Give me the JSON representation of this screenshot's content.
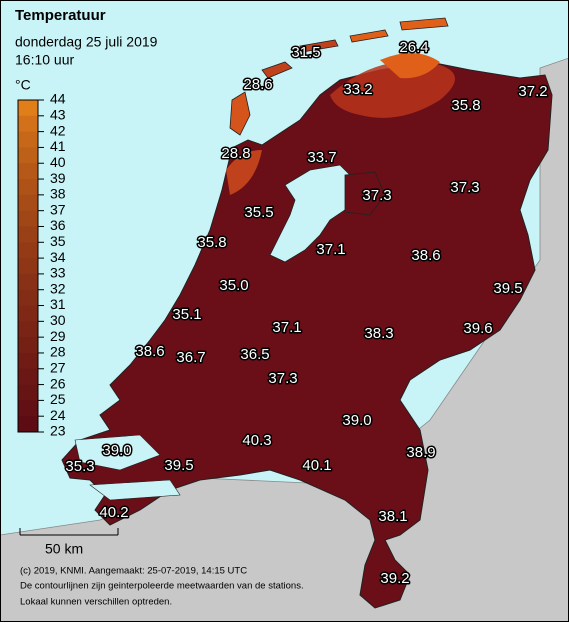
{
  "header": {
    "title": "Temperatuur",
    "date": "donderdag 25 juli 2019",
    "time": "16:10 uur"
  },
  "legend": {
    "unit": "°C",
    "labels": [
      "44",
      "43",
      "42",
      "41",
      "40",
      "39",
      "38",
      "37",
      "36",
      "35",
      "34",
      "33",
      "32",
      "31",
      "30",
      "29",
      "28",
      "27",
      "26",
      "25",
      "24",
      "23"
    ]
  },
  "stations": [
    "31.5",
    "26.4",
    "28.6",
    "33.2",
    "35.8",
    "37.2",
    "28.8",
    "33.7",
    "37.3",
    "37.3",
    "35.5",
    "35.8",
    "37.1",
    "38.6",
    "35.0",
    "39.5",
    "35.1",
    "37.1",
    "38.3",
    "39.6",
    "38.6",
    "36.7",
    "36.5",
    "37.3",
    "39.0",
    "39.0",
    "40.3",
    "38.9",
    "35.3",
    "39.5",
    "40.1",
    "40.2",
    "38.1",
    "39.2"
  ],
  "scale_bar": "50 km",
  "footer": [
    "(c) 2019, KNMI. Aangemaakt: 25-07-2019, 14:15 UTC",
    "De contourlijnen zijn geinterpoleerde meetwaarden van de stations.",
    "Lokaal kunnen verschillen optreden."
  ]
}
